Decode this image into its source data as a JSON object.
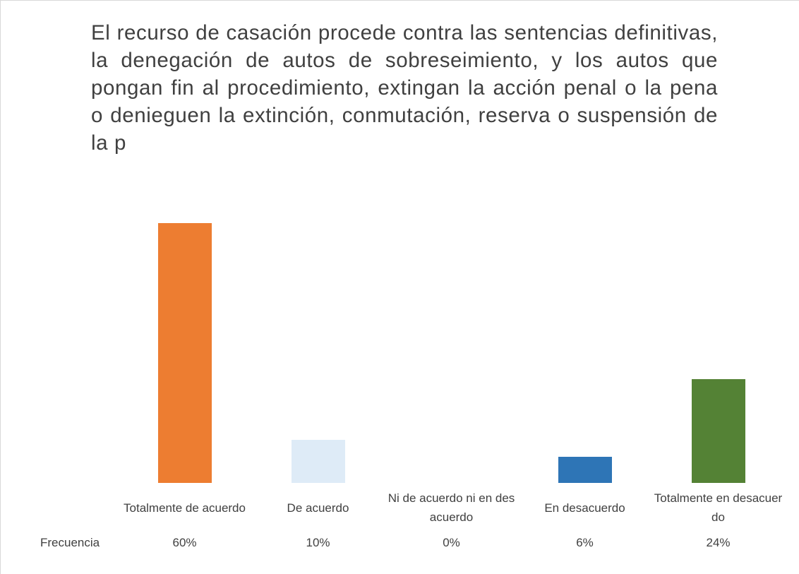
{
  "chart_data": {
    "type": "bar",
    "title": "El recurso de casación procede contra las sentencias definitivas, la denegación de autos de sobreseimiento, y los autos que pongan fin al procedimiento, extingan la acción penal o la pena o denieguen la extinción, conmutación, reserva o suspensión de la p",
    "categories": [
      "Totalmente de acuerdo",
      "De acuerdo",
      "Ni de acuerdo ni en desacuerdo",
      "En desacuerdo",
      "Totalmente en desacuerdo"
    ],
    "series": [
      {
        "name": "Frecuencia",
        "colors": [
          "#ed7d31",
          "#deebf7",
          "#a5a5a5",
          "#2e75b6",
          "#548235"
        ],
        "values": [
          60,
          10,
          0,
          6,
          24
        ],
        "value_labels": [
          "60%",
          "10%",
          "0%",
          "6%",
          "24%"
        ]
      }
    ]
  }
}
